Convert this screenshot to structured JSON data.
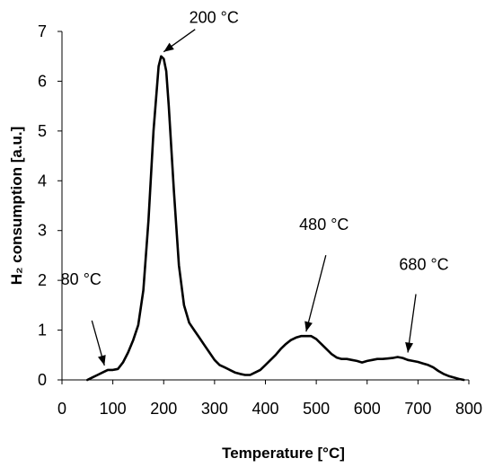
{
  "chart_data": {
    "type": "line",
    "title": "",
    "xlabel": "Temperature [°C]",
    "ylabel": "H₂ consumption [a.u.]",
    "xlim": [
      0,
      800
    ],
    "ylim": [
      0,
      7
    ],
    "xticks": [
      0,
      100,
      200,
      300,
      400,
      500,
      600,
      700,
      800
    ],
    "yticks": [
      0,
      1,
      2,
      3,
      4,
      5,
      6,
      7
    ],
    "grid": false,
    "series": [
      {
        "x": [
          50,
          60,
          70,
          80,
          90,
          100,
          110,
          120,
          130,
          140,
          150,
          160,
          170,
          180,
          190,
          195,
          200,
          205,
          210,
          220,
          230,
          240,
          250,
          260,
          270,
          280,
          290,
          300,
          310,
          320,
          330,
          340,
          350,
          360,
          370,
          380,
          390,
          400,
          410,
          420,
          430,
          440,
          450,
          460,
          470,
          480,
          490,
          500,
          510,
          520,
          530,
          540,
          550,
          560,
          570,
          580,
          590,
          600,
          610,
          620,
          630,
          640,
          650,
          660,
          670,
          680,
          690,
          700,
          710,
          720,
          730,
          740,
          750,
          760,
          770,
          780,
          790
        ],
        "y": [
          0.0,
          0.05,
          0.1,
          0.15,
          0.2,
          0.2,
          0.22,
          0.35,
          0.55,
          0.8,
          1.1,
          1.8,
          3.2,
          5.0,
          6.3,
          6.5,
          6.45,
          6.2,
          5.5,
          3.8,
          2.3,
          1.5,
          1.15,
          1.0,
          0.85,
          0.7,
          0.55,
          0.4,
          0.3,
          0.25,
          0.2,
          0.15,
          0.12,
          0.1,
          0.1,
          0.15,
          0.2,
          0.3,
          0.4,
          0.5,
          0.62,
          0.72,
          0.8,
          0.85,
          0.88,
          0.88,
          0.88,
          0.82,
          0.72,
          0.62,
          0.52,
          0.45,
          0.42,
          0.42,
          0.4,
          0.38,
          0.35,
          0.38,
          0.4,
          0.42,
          0.42,
          0.43,
          0.44,
          0.46,
          0.44,
          0.4,
          0.38,
          0.36,
          0.33,
          0.3,
          0.25,
          0.18,
          0.12,
          0.08,
          0.05,
          0.02,
          0.0
        ]
      }
    ],
    "annotations": [
      {
        "text": "80 °C",
        "x": 80,
        "y": 0.2
      },
      {
        "text": "200 °C",
        "x": 200,
        "y": 6.5
      },
      {
        "text": "480 °C",
        "x": 480,
        "y": 0.88
      },
      {
        "text": "680 °C",
        "x": 680,
        "y": 0.46
      }
    ]
  }
}
